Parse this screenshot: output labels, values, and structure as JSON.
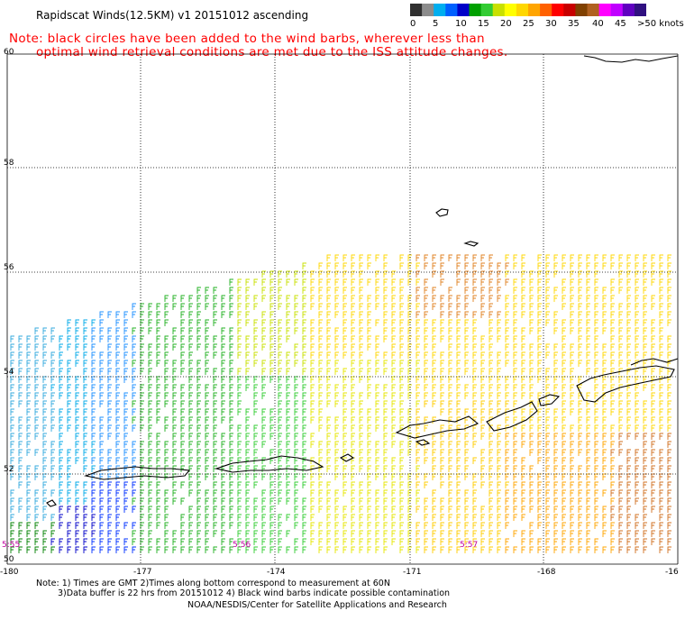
{
  "title": "Rapidscat Winds(12.5KM) v1 20151012 ascending",
  "note": {
    "line1": "Note: black circles have been added to the wind barbs, wherever less than",
    "line2": "optimal wind retrieval conditions are met due to the ISS attitude changes."
  },
  "colorbar": {
    "labels": [
      "0",
      "5",
      "10",
      "15",
      "20",
      "25",
      "30",
      "35",
      "40",
      "45",
      ">50 knots"
    ],
    "colors": [
      "#303030",
      "#8c8c8c",
      "#00aeef",
      "#0060ff",
      "#0000c8",
      "#00a000",
      "#33cc33",
      "#c8e000",
      "#ffff00",
      "#ffd700",
      "#ffa500",
      "#ff6000",
      "#ff0000",
      "#c80000",
      "#804000",
      "#b06020",
      "#ff00ff",
      "#c000ff",
      "#6000c0",
      "#301080"
    ]
  },
  "map": {
    "lat_labels": [
      "60",
      "58",
      "56",
      "54",
      "52",
      "50"
    ],
    "lon_labels": [
      "-180",
      "-177",
      "-174",
      "-171",
      "-168",
      "-16"
    ],
    "timestamps": [
      "5:55",
      "5:56",
      "5:57"
    ]
  },
  "footer": {
    "line1": "Note: 1) Times are GMT 2)Times along bottom correspond to measurement at 60N",
    "line2": "3)Data buffer is 22 hrs from 20151012 4) Black wind barbs indicate possible contamination",
    "line3": "NOAA/NESDIS/Center for Satellite Applications and Research"
  }
}
